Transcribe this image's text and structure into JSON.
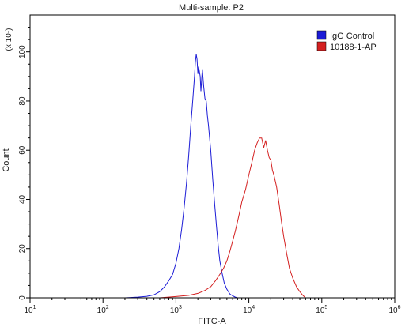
{
  "chart_data": {
    "type": "line",
    "title": "Multi-sample: P2",
    "xlabel": "FITC-A",
    "ylabel": "Count",
    "y_multiplier_label": "(x 10¹)",
    "x_scale": "log",
    "xlim": [
      10,
      1000000
    ],
    "ylim": [
      0,
      115
    ],
    "x_ticks": [
      {
        "value": 10,
        "base": "10",
        "exp": "1"
      },
      {
        "value": 100,
        "base": "10",
        "exp": "2"
      },
      {
        "value": 1000,
        "base": "10",
        "exp": "3"
      },
      {
        "value": 10000,
        "base": "10",
        "exp": "4"
      },
      {
        "value": 100000,
        "base": "10",
        "exp": "5"
      },
      {
        "value": 1000000,
        "base": "10",
        "exp": "6"
      }
    ],
    "y_ticks": [
      0,
      20,
      40,
      60,
      80,
      100
    ],
    "legend_position": "top-right",
    "grid": false,
    "series": [
      {
        "name": "IgG Control",
        "color": "#1c1cd6",
        "points": [
          [
            200,
            0
          ],
          [
            300,
            0.3
          ],
          [
            400,
            0.6
          ],
          [
            500,
            1.2
          ],
          [
            600,
            2.5
          ],
          [
            700,
            4.5
          ],
          [
            800,
            7
          ],
          [
            900,
            9.5
          ],
          [
            1000,
            14
          ],
          [
            1100,
            20
          ],
          [
            1200,
            28
          ],
          [
            1300,
            37
          ],
          [
            1400,
            47
          ],
          [
            1500,
            58
          ],
          [
            1600,
            70
          ],
          [
            1700,
            80
          ],
          [
            1800,
            90
          ],
          [
            1850,
            96
          ],
          [
            1900,
            99
          ],
          [
            1950,
            97
          ],
          [
            2000,
            91
          ],
          [
            2050,
            94
          ],
          [
            2150,
            90
          ],
          [
            2200,
            84
          ],
          [
            2300,
            93
          ],
          [
            2400,
            86
          ],
          [
            2500,
            81
          ],
          [
            2600,
            80
          ],
          [
            2700,
            74
          ],
          [
            2800,
            70
          ],
          [
            3000,
            60
          ],
          [
            3200,
            48
          ],
          [
            3400,
            38
          ],
          [
            3600,
            29
          ],
          [
            3800,
            21
          ],
          [
            4000,
            15
          ],
          [
            4300,
            10
          ],
          [
            4600,
            6
          ],
          [
            5000,
            3.5
          ],
          [
            5500,
            1.5
          ],
          [
            6000,
            0.8
          ],
          [
            6500,
            0.3
          ],
          [
            7000,
            0
          ]
        ]
      },
      {
        "name": "10188-1-AP",
        "color": "#d42020",
        "points": [
          [
            600,
            0
          ],
          [
            1000,
            0.5
          ],
          [
            1500,
            1
          ],
          [
            2000,
            1.8
          ],
          [
            2500,
            3
          ],
          [
            3000,
            4.5
          ],
          [
            3500,
            7
          ],
          [
            4000,
            9.5
          ],
          [
            4500,
            12
          ],
          [
            5000,
            15
          ],
          [
            5500,
            19
          ],
          [
            6000,
            23
          ],
          [
            6500,
            27
          ],
          [
            7000,
            31
          ],
          [
            7500,
            35
          ],
          [
            8000,
            39
          ],
          [
            9000,
            44
          ],
          [
            10000,
            50
          ],
          [
            11000,
            55
          ],
          [
            12000,
            60
          ],
          [
            13000,
            63
          ],
          [
            14000,
            65
          ],
          [
            15000,
            65
          ],
          [
            16000,
            61
          ],
          [
            17000,
            64
          ],
          [
            18000,
            60
          ],
          [
            19000,
            57
          ],
          [
            20000,
            56
          ],
          [
            21000,
            52
          ],
          [
            22000,
            50
          ],
          [
            24000,
            45
          ],
          [
            26000,
            38
          ],
          [
            28000,
            31
          ],
          [
            30000,
            25
          ],
          [
            33000,
            18
          ],
          [
            36000,
            12
          ],
          [
            40000,
            8
          ],
          [
            45000,
            4.5
          ],
          [
            50000,
            2.5
          ],
          [
            55000,
            1
          ],
          [
            60000,
            0
          ]
        ]
      }
    ]
  }
}
